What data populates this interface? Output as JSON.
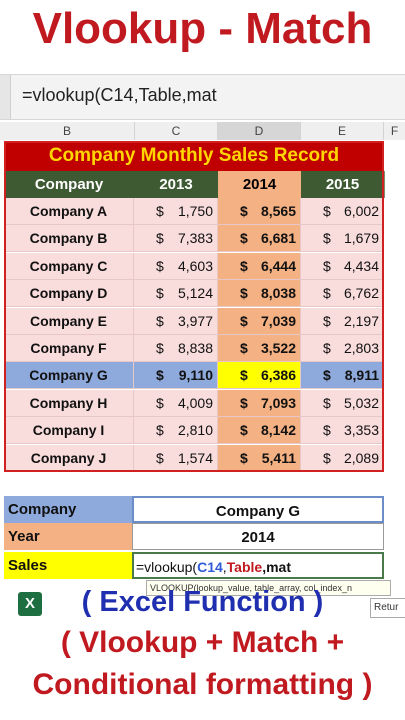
{
  "heading": "Vlookup - Match",
  "formula_bar": "=vlookup(C14,Table,mat",
  "columns": [
    "B",
    "C",
    "D",
    "E",
    "F"
  ],
  "table": {
    "title": "Company Monthly Sales Record",
    "headers": [
      "Company",
      "2013",
      "2014",
      "2015"
    ],
    "currency": "$",
    "rows": [
      {
        "name": "Company A",
        "v2013": "1,750",
        "v2014": "8,565",
        "v2015": "6,002"
      },
      {
        "name": "Company B",
        "v2013": "7,383",
        "v2014": "6,681",
        "v2015": "1,679"
      },
      {
        "name": "Company C",
        "v2013": "4,603",
        "v2014": "6,444",
        "v2015": "4,434"
      },
      {
        "name": "Company D",
        "v2013": "5,124",
        "v2014": "8,038",
        "v2015": "6,762"
      },
      {
        "name": "Company E",
        "v2013": "3,977",
        "v2014": "7,039",
        "v2015": "2,197"
      },
      {
        "name": "Company F",
        "v2013": "8,838",
        "v2014": "3,522",
        "v2015": "2,803"
      },
      {
        "name": "Company G",
        "v2013": "9,110",
        "v2014": "6,386",
        "v2015": "8,911"
      },
      {
        "name": "Company H",
        "v2013": "4,009",
        "v2014": "7,093",
        "v2015": "5,032"
      },
      {
        "name": "Company I",
        "v2013": "2,810",
        "v2014": "8,142",
        "v2015": "3,353"
      },
      {
        "name": "Company J",
        "v2013": "1,574",
        "v2014": "5,411",
        "v2015": "2,089"
      }
    ]
  },
  "lookup": {
    "company_label": "Company",
    "company_value": "Company G",
    "year_label": "Year",
    "year_value": "2014",
    "sales_label": "Sales",
    "sales_value": "=vlookup(C14,Table,mat"
  },
  "tooltip": "VLOOKUP(lookup_value, table_array, col_index_n",
  "return_hint": "Retur",
  "caption": {
    "line1": "( Excel Function )",
    "line2": "( Vlookup + Match +",
    "line3": "Conditional formatting )"
  },
  "colors": {
    "title_red": "#c0191f",
    "highlight_yellow": "#ffff00",
    "highlight_blue": "#8ea9db",
    "header_green": "#3e5a33"
  }
}
